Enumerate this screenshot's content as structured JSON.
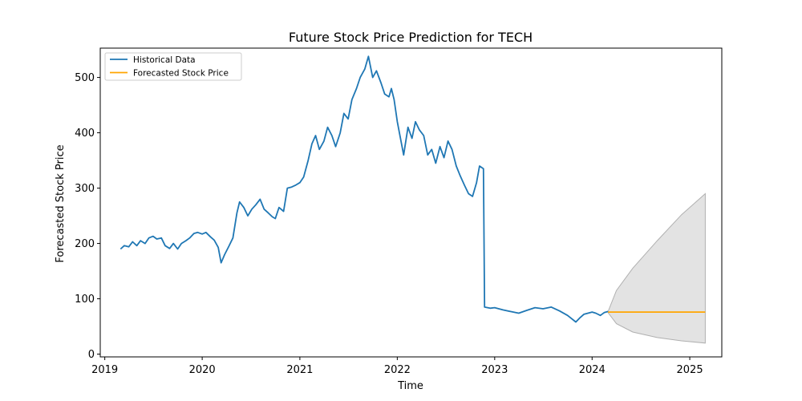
{
  "chart_data": {
    "type": "line",
    "title": "Future Stock Price Prediction for TECH",
    "xlabel": "Time",
    "ylabel": "Forecasted Stock Price",
    "xlim": [
      "2018-12-15",
      "2025-05-01"
    ],
    "ylim": [
      -5,
      553
    ],
    "x_ticks": [
      {
        "date": "2019-01-01",
        "label": "2019"
      },
      {
        "date": "2020-01-01",
        "label": "2020"
      },
      {
        "date": "2021-01-01",
        "label": "2021"
      },
      {
        "date": "2022-01-01",
        "label": "2022"
      },
      {
        "date": "2023-01-01",
        "label": "2023"
      },
      {
        "date": "2024-01-01",
        "label": "2024"
      },
      {
        "date": "2025-01-01",
        "label": "2025"
      }
    ],
    "y_ticks": [
      0,
      100,
      200,
      300,
      400,
      500
    ],
    "grid": false,
    "legend_position": "top-left",
    "series": [
      {
        "name": "Historical Data",
        "color": "#1f77b4",
        "points": [
          [
            "2019-03-01",
            190
          ],
          [
            "2019-03-15",
            196
          ],
          [
            "2019-04-01",
            194
          ],
          [
            "2019-04-15",
            203
          ],
          [
            "2019-05-01",
            196
          ],
          [
            "2019-05-15",
            205
          ],
          [
            "2019-06-01",
            200
          ],
          [
            "2019-06-15",
            210
          ],
          [
            "2019-07-01",
            213
          ],
          [
            "2019-07-15",
            208
          ],
          [
            "2019-08-01",
            210
          ],
          [
            "2019-08-15",
            196
          ],
          [
            "2019-09-01",
            191
          ],
          [
            "2019-09-15",
            200
          ],
          [
            "2019-10-01",
            190
          ],
          [
            "2019-10-15",
            200
          ],
          [
            "2019-11-01",
            205
          ],
          [
            "2019-11-15",
            210
          ],
          [
            "2019-12-01",
            218
          ],
          [
            "2019-12-15",
            220
          ],
          [
            "2020-01-01",
            217
          ],
          [
            "2020-01-15",
            220
          ],
          [
            "2020-02-01",
            212
          ],
          [
            "2020-02-15",
            206
          ],
          [
            "2020-03-01",
            193
          ],
          [
            "2020-03-12",
            165
          ],
          [
            "2020-03-25",
            180
          ],
          [
            "2020-04-10",
            195
          ],
          [
            "2020-04-25",
            210
          ],
          [
            "2020-05-10",
            255
          ],
          [
            "2020-05-20",
            275
          ],
          [
            "2020-06-05",
            265
          ],
          [
            "2020-06-20",
            250
          ],
          [
            "2020-07-05",
            262
          ],
          [
            "2020-07-20",
            270
          ],
          [
            "2020-08-05",
            280
          ],
          [
            "2020-08-20",
            262
          ],
          [
            "2020-09-05",
            255
          ],
          [
            "2020-09-20",
            248
          ],
          [
            "2020-10-01",
            245
          ],
          [
            "2020-10-15",
            265
          ],
          [
            "2020-11-01",
            258
          ],
          [
            "2020-11-15",
            300
          ],
          [
            "2020-12-01",
            302
          ],
          [
            "2020-12-15",
            305
          ],
          [
            "2021-01-01",
            310
          ],
          [
            "2021-01-15",
            320
          ],
          [
            "2021-02-01",
            350
          ],
          [
            "2021-02-15",
            380
          ],
          [
            "2021-03-01",
            395
          ],
          [
            "2021-03-15",
            370
          ],
          [
            "2021-04-01",
            385
          ],
          [
            "2021-04-15",
            410
          ],
          [
            "2021-05-01",
            395
          ],
          [
            "2021-05-15",
            375
          ],
          [
            "2021-06-01",
            400
          ],
          [
            "2021-06-15",
            435
          ],
          [
            "2021-07-01",
            425
          ],
          [
            "2021-07-15",
            460
          ],
          [
            "2021-08-01",
            480
          ],
          [
            "2021-08-15",
            500
          ],
          [
            "2021-09-01",
            515
          ],
          [
            "2021-09-15",
            538
          ],
          [
            "2021-10-01",
            500
          ],
          [
            "2021-10-15",
            512
          ],
          [
            "2021-11-01",
            490
          ],
          [
            "2021-11-15",
            470
          ],
          [
            "2021-12-01",
            465
          ],
          [
            "2021-12-10",
            480
          ],
          [
            "2021-12-20",
            460
          ],
          [
            "2022-01-01",
            420
          ],
          [
            "2022-01-15",
            385
          ],
          [
            "2022-01-25",
            360
          ],
          [
            "2022-02-10",
            410
          ],
          [
            "2022-02-25",
            390
          ],
          [
            "2022-03-10",
            420
          ],
          [
            "2022-03-25",
            405
          ],
          [
            "2022-04-10",
            395
          ],
          [
            "2022-04-25",
            360
          ],
          [
            "2022-05-10",
            370
          ],
          [
            "2022-05-25",
            345
          ],
          [
            "2022-06-10",
            375
          ],
          [
            "2022-06-25",
            355
          ],
          [
            "2022-07-10",
            385
          ],
          [
            "2022-07-25",
            370
          ],
          [
            "2022-08-10",
            340
          ],
          [
            "2022-08-25",
            322
          ],
          [
            "2022-09-10",
            305
          ],
          [
            "2022-09-25",
            290
          ],
          [
            "2022-10-10",
            285
          ],
          [
            "2022-10-25",
            310
          ],
          [
            "2022-11-05",
            340
          ],
          [
            "2022-11-20",
            335
          ],
          [
            "2022-11-24",
            85
          ],
          [
            "2022-12-15",
            83
          ],
          [
            "2023-01-01",
            84
          ],
          [
            "2023-02-01",
            80
          ],
          [
            "2023-03-01",
            77
          ],
          [
            "2023-04-01",
            74
          ],
          [
            "2023-05-01",
            79
          ],
          [
            "2023-06-01",
            84
          ],
          [
            "2023-07-01",
            82
          ],
          [
            "2023-08-01",
            85
          ],
          [
            "2023-09-01",
            78
          ],
          [
            "2023-10-01",
            70
          ],
          [
            "2023-11-01",
            58
          ],
          [
            "2023-11-15",
            65
          ],
          [
            "2023-12-01",
            72
          ],
          [
            "2024-01-01",
            76
          ],
          [
            "2024-01-15",
            74
          ],
          [
            "2024-02-01",
            70
          ],
          [
            "2024-02-15",
            75
          ],
          [
            "2024-03-01",
            77
          ]
        ]
      },
      {
        "name": "Forecasted Stock Price",
        "color": "#ffa500",
        "points": [
          [
            "2024-03-01",
            76
          ],
          [
            "2025-02-28",
            76
          ]
        ]
      }
    ],
    "confidence_band": {
      "color": "#b0b0b0",
      "upper": [
        [
          "2024-03-01",
          77
        ],
        [
          "2024-04-01",
          115
        ],
        [
          "2024-06-01",
          155
        ],
        [
          "2024-09-01",
          205
        ],
        [
          "2024-12-01",
          252
        ],
        [
          "2025-02-28",
          290
        ]
      ],
      "lower": [
        [
          "2024-03-01",
          75
        ],
        [
          "2024-04-01",
          55
        ],
        [
          "2024-06-01",
          40
        ],
        [
          "2024-09-01",
          30
        ],
        [
          "2024-12-01",
          24
        ],
        [
          "2025-02-28",
          20
        ]
      ]
    }
  }
}
